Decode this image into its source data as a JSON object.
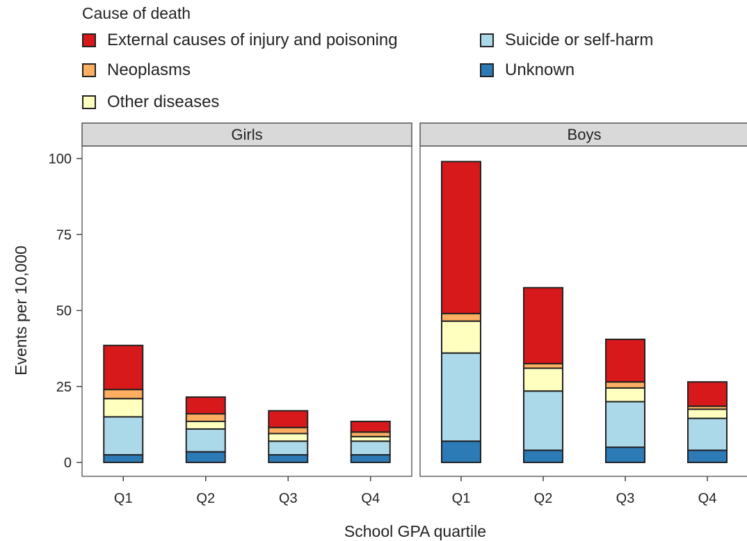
{
  "chart_data": {
    "type": "bar",
    "stacked": true,
    "legend_title": "Cause of death",
    "ylabel": "Events per 10,000",
    "xlabel": "School GPA quartile",
    "ylim": [
      0,
      100
    ],
    "yticks": [
      0,
      25,
      50,
      75,
      100
    ],
    "categories": [
      "Q1",
      "Q2",
      "Q3",
      "Q4"
    ],
    "legend": [
      {
        "name": "External causes of injury and poisoning",
        "color": "#d7191c"
      },
      {
        "name": "Suicide or self-harm",
        "color": "#abd9e9"
      },
      {
        "name": "Neoplasms",
        "color": "#fdae61"
      },
      {
        "name": "Unknown",
        "color": "#2c7bb6"
      },
      {
        "name": "Other diseases",
        "color": "#ffffbf"
      }
    ],
    "panels": [
      {
        "name": "Girls",
        "series": [
          {
            "name": "Unknown",
            "color": "#2c7bb6",
            "values": [
              2.5,
              3.5,
              2.5,
              2.5
            ]
          },
          {
            "name": "Suicide or self-harm",
            "color": "#abd9e9",
            "values": [
              12.5,
              7.5,
              4.5,
              4.5
            ]
          },
          {
            "name": "Other diseases",
            "color": "#ffffbf",
            "values": [
              6.0,
              2.5,
              2.5,
              1.5
            ]
          },
          {
            "name": "Neoplasms",
            "color": "#fdae61",
            "values": [
              3.0,
              2.5,
              2.0,
              1.5
            ]
          },
          {
            "name": "External causes of injury and poisoning",
            "color": "#d7191c",
            "values": [
              14.5,
              5.5,
              5.5,
              3.5
            ]
          }
        ]
      },
      {
        "name": "Boys",
        "series": [
          {
            "name": "Unknown",
            "color": "#2c7bb6",
            "values": [
              7.0,
              4.0,
              5.0,
              4.0
            ]
          },
          {
            "name": "Suicide or self-harm",
            "color": "#abd9e9",
            "values": [
              29.0,
              19.5,
              15.0,
              10.5
            ]
          },
          {
            "name": "Other diseases",
            "color": "#ffffbf",
            "values": [
              10.5,
              7.5,
              4.5,
              3.0
            ]
          },
          {
            "name": "Neoplasms",
            "color": "#fdae61",
            "values": [
              2.5,
              1.5,
              2.0,
              1.0
            ]
          },
          {
            "name": "External causes of injury and poisoning",
            "color": "#d7191c",
            "values": [
              50.0,
              25.0,
              14.0,
              8.0
            ]
          }
        ]
      }
    ]
  }
}
